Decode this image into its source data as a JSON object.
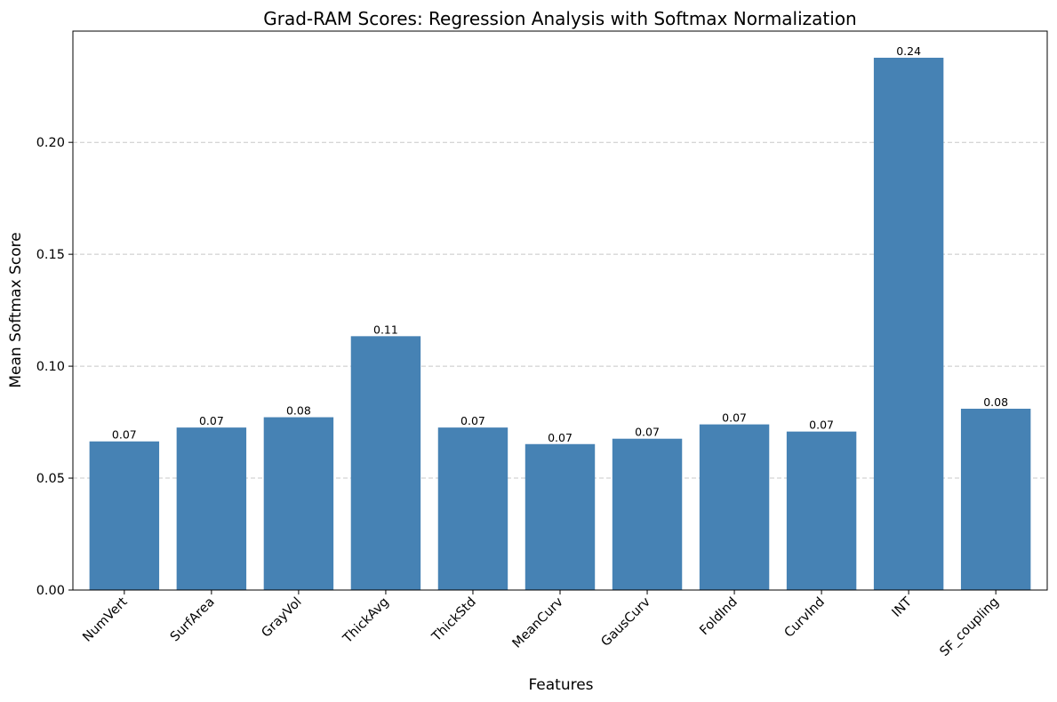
{
  "chart_data": {
    "type": "bar",
    "title": "Grad-RAM Scores: Regression Analysis with Softmax Normalization",
    "xlabel": "Features",
    "ylabel": "Mean Softmax Score",
    "categories": [
      "NumVert",
      "SurfArea",
      "GrayVol",
      "ThickAvg",
      "ThickStd",
      "MeanCurv",
      "GausCurv",
      "FoldInd",
      "CurvInd",
      "INT",
      "SF_coupling"
    ],
    "values": [
      0.0664,
      0.0726,
      0.0772,
      0.1134,
      0.0726,
      0.0652,
      0.0676,
      0.074,
      0.0708,
      0.2378,
      0.081
    ],
    "data_labels": [
      "0.07",
      "0.07",
      "0.08",
      "0.11",
      "0.07",
      "0.07",
      "0.07",
      "0.07",
      "0.07",
      "0.24",
      "0.08"
    ],
    "ylim": [
      0,
      0.2497
    ],
    "yticks": [
      0,
      0.05,
      0.1,
      0.15,
      0.2
    ],
    "ytick_labels": [
      "0.00",
      "0.05",
      "0.10",
      "0.15",
      "0.20"
    ],
    "grid": "y-dashed",
    "bar_color": "#4682b4",
    "grid_color": "#c8c8c8"
  }
}
